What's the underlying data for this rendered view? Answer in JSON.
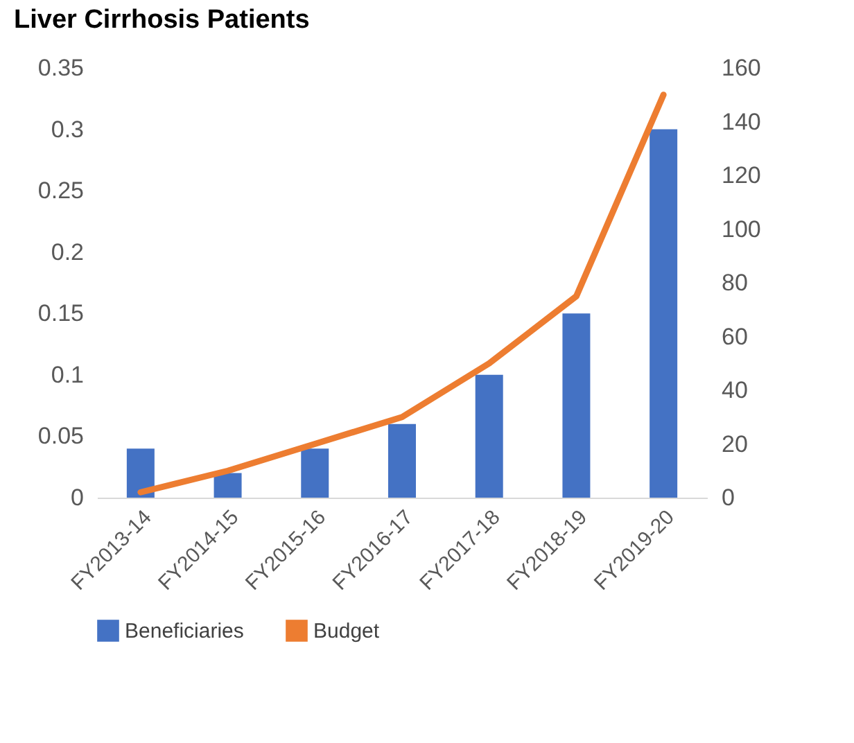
{
  "chart_data": {
    "type": "bar",
    "title": "Liver Cirrhosis Patients",
    "categories": [
      "FY2013-14",
      "FY2014-15",
      "FY2015-16",
      "FY2016-17",
      "FY2017-18",
      "FY2018-19",
      "FY2019-20"
    ],
    "series": [
      {
        "name": "Beneficiaries",
        "color": "#4472c4",
        "values": [
          0.04,
          0.02,
          0.04,
          0.06,
          0.1,
          0.15,
          0.3
        ]
      },
      {
        "name": "Budget",
        "type": "line",
        "axis": "y2",
        "color": "#ed7d31",
        "values": [
          2,
          10,
          20,
          30,
          50,
          75,
          150
        ]
      }
    ],
    "ylim": [
      0,
      0.35
    ],
    "yticks": [
      0,
      0.05,
      0.1,
      0.15,
      0.2,
      0.25,
      0.3,
      0.35
    ],
    "y2lim": [
      0,
      160
    ],
    "y2ticks": [
      0,
      20,
      40,
      60,
      80,
      100,
      120,
      140,
      160
    ],
    "grid": false,
    "legend": "bottom",
    "marker": "none",
    "line_style": "solid"
  }
}
